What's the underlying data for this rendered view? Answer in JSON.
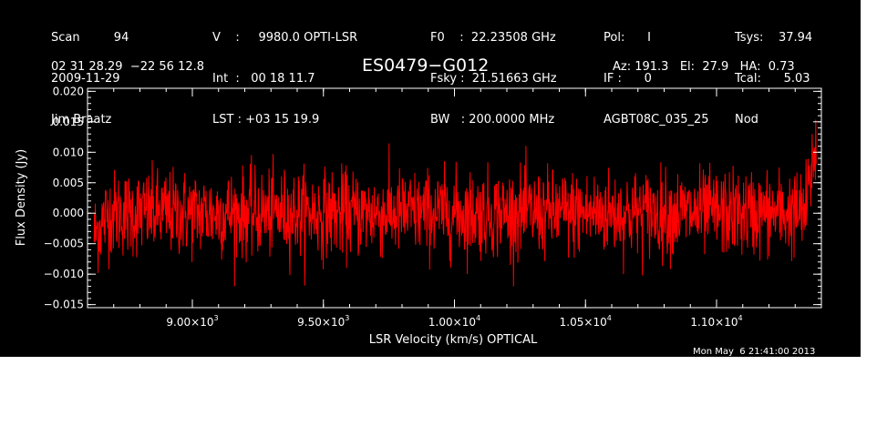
{
  "header": {
    "col1": [
      "Scan         94",
      "2009-11-29",
      "Jim Braatz"
    ],
    "col2": [
      "V    :     9980.0 OPTI-LSR",
      "Int  :   00 18 11.7",
      "LST : +03 15 19.9"
    ],
    "col3": [
      "F0    :  22.23508 GHz",
      "Fsky :  21.51663 GHz",
      "BW   : 200.0000 MHz"
    ],
    "col4": [
      "Pol:      I",
      "IF :      0",
      "AGBT08C_035_25"
    ],
    "col5": [
      "Tsys:    37.94",
      "Tcal:      5.03",
      "Nod"
    ],
    "coords": "02 31 28.29  −22 56 12.8",
    "source": "ES0479−G012",
    "pointing": "Az: 191.3   El:  27.9   HA:  0.73",
    "timestamp": "Mon May  6 21:41:00 2013"
  },
  "chart_data": {
    "type": "line",
    "xlabel": "LSR Velocity (km/s) OPTICAL",
    "ylabel": "Flux Density (Jy)",
    "xlim": [
      8600,
      11400
    ],
    "ylim": [
      -0.0155,
      0.0205
    ],
    "x_ticks": [
      9000,
      9500,
      10000,
      10500,
      11000
    ],
    "x_tick_labels": [
      {
        "mant": "9.00×10",
        "exp": "3"
      },
      {
        "mant": "9.50×10",
        "exp": "3"
      },
      {
        "mant": "1.00×10",
        "exp": "4"
      },
      {
        "mant": "1.05×10",
        "exp": "4"
      },
      {
        "mant": "1.10×10",
        "exp": "4"
      }
    ],
    "y_ticks": [
      -0.015,
      -0.01,
      -0.005,
      0.0,
      0.005,
      0.01,
      0.015,
      0.02
    ],
    "y_tick_labels": [
      "−0.015",
      "−0.010",
      "−0.005",
      "0.000",
      "0.005",
      "0.010",
      "0.015",
      "0.020"
    ],
    "series": [
      {
        "color": "#ff0000",
        "x_range": [
          8625,
          11380
        ],
        "n_points": 1800,
        "noise_rms": 0.0035,
        "edge_values": {
          "left_start": -0.006,
          "right_end": 0.012
        }
      }
    ],
    "grid": false,
    "legend": "none"
  },
  "colors": {
    "background": "#000000",
    "axes": "#ffffff",
    "trace": "#ff0000"
  }
}
